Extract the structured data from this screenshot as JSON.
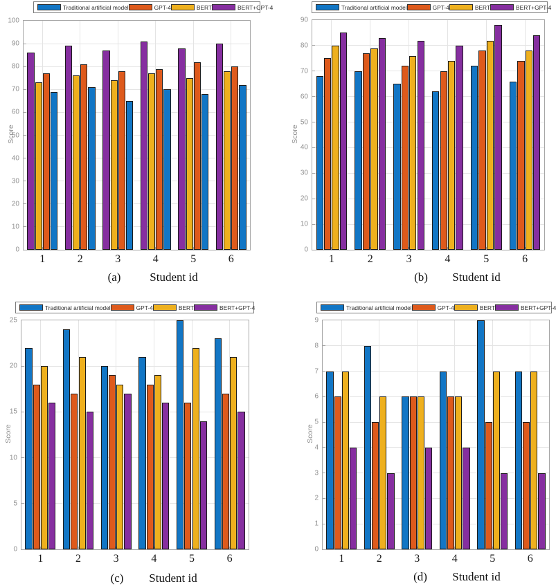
{
  "page": {
    "background": "#ffffff"
  },
  "series_colors": {
    "traditional": "#1276C5",
    "gpt4": "#DE5A1C",
    "bert": "#EEB01E",
    "bert_gpt4": "#862FA0"
  },
  "chart_data": [
    {
      "id": "a",
      "type": "bar",
      "caption": "(a)",
      "xlabel": "Student id",
      "ylabel": "Score",
      "categories": [
        "1",
        "2",
        "3",
        "4",
        "5",
        "6"
      ],
      "ylim": [
        0,
        100
      ],
      "yticks": [
        0,
        10,
        20,
        30,
        40,
        50,
        60,
        70,
        80,
        90,
        100
      ],
      "grid": "on",
      "legend_position": "top",
      "bar_order": [
        3,
        2,
        1,
        0
      ],
      "series": [
        {
          "name": "Traditional artificial model",
          "color": "#1276C5",
          "values": [
            69,
            71,
            65,
            70,
            68,
            72
          ]
        },
        {
          "name": "GPT-4",
          "color": "#DE5A1C",
          "values": [
            77,
            81,
            78,
            79,
            82,
            80
          ]
        },
        {
          "name": "BERT",
          "color": "#EEB01E",
          "values": [
            73,
            76,
            74,
            77,
            75,
            78
          ]
        },
        {
          "name": "BERT+GPT-4",
          "color": "#862FA0",
          "values": [
            86,
            89,
            87,
            91,
            88,
            90
          ]
        }
      ]
    },
    {
      "id": "b",
      "type": "bar",
      "caption": "(b)",
      "xlabel": "Student id",
      "ylabel": "Score",
      "categories": [
        "1",
        "2",
        "3",
        "4",
        "5",
        "6"
      ],
      "ylim": [
        0,
        90
      ],
      "yticks": [
        0,
        10,
        20,
        30,
        40,
        50,
        60,
        70,
        80,
        90
      ],
      "grid": "on",
      "legend_position": "top",
      "bar_order": [
        0,
        1,
        2,
        3
      ],
      "series": [
        {
          "name": "Traditional artificial model",
          "color": "#1276C5",
          "values": [
            68,
            70,
            65,
            62,
            72,
            66
          ]
        },
        {
          "name": "GPT-4",
          "color": "#DE5A1C",
          "values": [
            75,
            77,
            72,
            70,
            78,
            74
          ]
        },
        {
          "name": "BERT",
          "color": "#EEB01E",
          "values": [
            80,
            79,
            76,
            74,
            82,
            78
          ]
        },
        {
          "name": "BERT+GPT-4",
          "color": "#862FA0",
          "values": [
            85,
            83,
            82,
            80,
            88,
            84
          ]
        }
      ]
    },
    {
      "id": "c",
      "type": "bar",
      "caption": "(c)",
      "xlabel": "Student id",
      "ylabel": "Score",
      "categories": [
        "1",
        "2",
        "3",
        "4",
        "5",
        "6"
      ],
      "ylim": [
        0,
        25
      ],
      "yticks": [
        0,
        5,
        10,
        15,
        20,
        25
      ],
      "grid": "on",
      "legend_position": "top",
      "bar_order": [
        0,
        1,
        2,
        3
      ],
      "series": [
        {
          "name": "Traditional artificial model",
          "color": "#1276C5",
          "values": [
            22,
            24,
            20,
            21,
            25,
            23
          ]
        },
        {
          "name": "GPT-4",
          "color": "#DE5A1C",
          "values": [
            18,
            17,
            19,
            18,
            16,
            17
          ]
        },
        {
          "name": "BERT",
          "color": "#EEB01E",
          "values": [
            20,
            21,
            18,
            19,
            22,
            21
          ]
        },
        {
          "name": "BERT+GPT-4",
          "color": "#862FA0",
          "values": [
            16,
            15,
            17,
            16,
            14,
            15
          ]
        }
      ]
    },
    {
      "id": "d",
      "type": "bar",
      "caption": "(d)",
      "xlabel": "Student id",
      "ylabel": "Score",
      "categories": [
        "1",
        "2",
        "3",
        "4",
        "5",
        "6"
      ],
      "ylim": [
        0,
        9
      ],
      "yticks": [
        0,
        1,
        2,
        3,
        4,
        5,
        6,
        7,
        8,
        9
      ],
      "grid": "on",
      "legend_position": "top",
      "bar_order": [
        0,
        1,
        2,
        3
      ],
      "series": [
        {
          "name": "Traditional artificial model",
          "color": "#1276C5",
          "values": [
            7,
            8,
            6,
            7,
            9,
            7
          ]
        },
        {
          "name": "GPT-4",
          "color": "#DE5A1C",
          "values": [
            6,
            5,
            6,
            6,
            5,
            5
          ]
        },
        {
          "name": "BERT",
          "color": "#EEB01E",
          "values": [
            7,
            6,
            6,
            6,
            7,
            7
          ]
        },
        {
          "name": "BERT+GPT-4",
          "color": "#862FA0",
          "values": [
            4,
            3,
            4,
            4,
            3,
            3
          ]
        }
      ]
    }
  ]
}
